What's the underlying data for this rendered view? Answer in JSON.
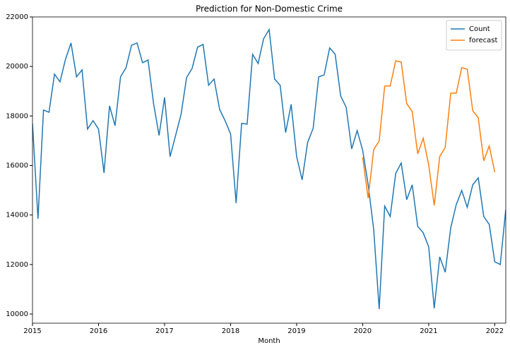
{
  "chart_data": {
    "type": "line",
    "title": "Prediction for Non-Domestic Crime",
    "xlabel": "Month",
    "x": [
      "2015-01",
      "2015-02",
      "2015-03",
      "2015-04",
      "2015-05",
      "2015-06",
      "2015-07",
      "2015-08",
      "2015-09",
      "2015-10",
      "2015-11",
      "2015-12",
      "2016-01",
      "2016-02",
      "2016-03",
      "2016-04",
      "2016-05",
      "2016-06",
      "2016-07",
      "2016-08",
      "2016-09",
      "2016-10",
      "2016-11",
      "2016-12",
      "2017-01",
      "2017-02",
      "2017-03",
      "2017-04",
      "2017-05",
      "2017-06",
      "2017-07",
      "2017-08",
      "2017-09",
      "2017-10",
      "2017-11",
      "2017-12",
      "2018-01",
      "2018-02",
      "2018-03",
      "2018-04",
      "2018-05",
      "2018-06",
      "2018-07",
      "2018-08",
      "2018-09",
      "2018-10",
      "2018-11",
      "2018-12",
      "2019-01",
      "2019-02",
      "2019-03",
      "2019-04",
      "2019-05",
      "2019-06",
      "2019-07",
      "2019-08",
      "2019-09",
      "2019-10",
      "2019-11",
      "2019-12",
      "2020-01",
      "2020-02",
      "2020-03",
      "2020-04",
      "2020-05",
      "2020-06",
      "2020-07",
      "2020-08",
      "2020-09",
      "2020-10",
      "2020-11",
      "2020-12",
      "2021-01",
      "2021-02",
      "2021-03",
      "2021-04",
      "2021-05",
      "2021-06",
      "2021-07",
      "2021-08",
      "2021-09",
      "2021-10",
      "2021-11",
      "2021-12",
      "2022-01",
      "2022-02",
      "2022-03"
    ],
    "series": [
      {
        "name": "Count",
        "color": "#1f77b4",
        "values": [
          17700,
          13850,
          18240,
          18150,
          19690,
          19380,
          20290,
          20950,
          19580,
          19860,
          17470,
          17810,
          17470,
          15700,
          18410,
          17610,
          19580,
          19950,
          20860,
          20950,
          20150,
          20260,
          18500,
          17210,
          18750,
          16360,
          17210,
          18070,
          19550,
          19920,
          20780,
          20890,
          19240,
          19490,
          18270,
          17810,
          17270,
          14480,
          17700,
          17670,
          20490,
          20120,
          21120,
          21490,
          19490,
          19240,
          17330,
          18470,
          16360,
          15420,
          16930,
          17500,
          19580,
          19660,
          20750,
          20490,
          18810,
          18350,
          16670,
          17410,
          16610,
          15220,
          13420,
          10200,
          14360,
          13940,
          15680,
          16100,
          14620,
          15220,
          13540,
          13280,
          12710,
          10230,
          12310,
          11690,
          13480,
          14420,
          14990,
          14310,
          15220,
          15500,
          13940,
          13620,
          12110,
          12000,
          14220
        ]
      },
      {
        "name": "forecast",
        "color": "#ff7f0e",
        "values": [
          null,
          null,
          null,
          null,
          null,
          null,
          null,
          null,
          null,
          null,
          null,
          null,
          null,
          null,
          null,
          null,
          null,
          null,
          null,
          null,
          null,
          null,
          null,
          null,
          null,
          null,
          null,
          null,
          null,
          null,
          null,
          null,
          null,
          null,
          null,
          null,
          null,
          null,
          null,
          null,
          null,
          null,
          null,
          null,
          null,
          null,
          null,
          null,
          null,
          null,
          null,
          null,
          null,
          null,
          null,
          null,
          null,
          null,
          null,
          null,
          16330,
          14680,
          16640,
          16990,
          19210,
          19210,
          20230,
          20180,
          18500,
          18180,
          16470,
          17100,
          16020,
          14390,
          16360,
          16730,
          18920,
          18920,
          19950,
          19890,
          18210,
          17930,
          16190,
          16790,
          15730,
          null,
          null
        ]
      }
    ],
    "xlim": [
      "2015-01",
      "2022-03"
    ],
    "xticks": [
      {
        "value": "2015-01",
        "label": "2015"
      },
      {
        "value": "2016-01",
        "label": "2016"
      },
      {
        "value": "2017-01",
        "label": "2017"
      },
      {
        "value": "2018-01",
        "label": "2018"
      },
      {
        "value": "2019-01",
        "label": "2019"
      },
      {
        "value": "2020-01",
        "label": "2020"
      },
      {
        "value": "2021-01",
        "label": "2021"
      },
      {
        "value": "2022-01",
        "label": "2022"
      }
    ],
    "ylim": [
      9630,
      22000
    ],
    "yticks": [
      10000,
      12000,
      14000,
      16000,
      18000,
      20000,
      22000
    ],
    "grid": false,
    "legend": "upper right"
  }
}
